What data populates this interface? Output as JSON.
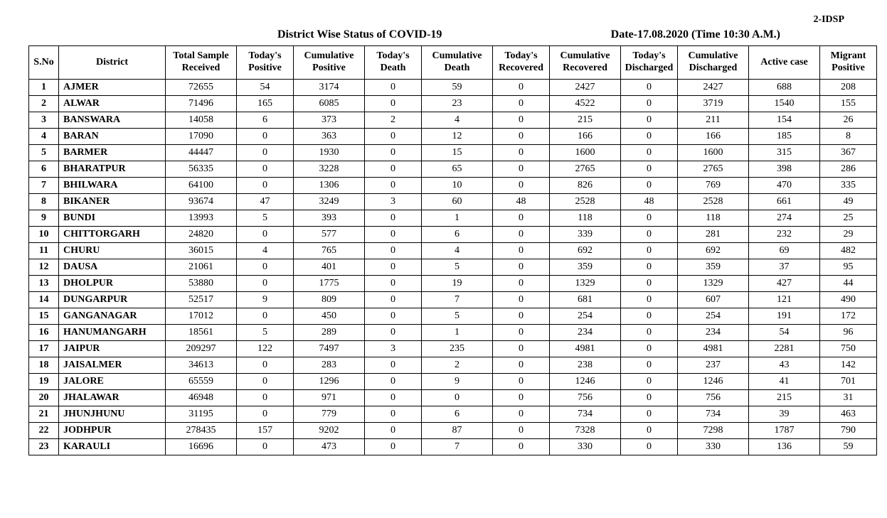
{
  "page_tag": "2-IDSP",
  "title": "District Wise Status of  COVID-19",
  "date_label": "Date-17.08.2020 (Time 10:30 A.M.)",
  "columns": [
    "S.No",
    "District",
    "Total Sample Received",
    "Today's Positive",
    "Cumulative Positive",
    "Today's Death",
    "Cumulative Death",
    "Today's Recovered",
    "Cumulative Recovered",
    "Today's Discharged",
    "Cumulative Discharged",
    "Active  case",
    "Migrant Positive"
  ],
  "rows": [
    [
      "1",
      "AJMER",
      "72655",
      "54",
      "3174",
      "0",
      "59",
      "0",
      "2427",
      "0",
      "2427",
      "688",
      "208"
    ],
    [
      "2",
      "ALWAR",
      "71496",
      "165",
      "6085",
      "0",
      "23",
      "0",
      "4522",
      "0",
      "3719",
      "1540",
      "155"
    ],
    [
      "3",
      "BANSWARA",
      "14058",
      "6",
      "373",
      "2",
      "4",
      "0",
      "215",
      "0",
      "211",
      "154",
      "26"
    ],
    [
      "4",
      "BARAN",
      "17090",
      "0",
      "363",
      "0",
      "12",
      "0",
      "166",
      "0",
      "166",
      "185",
      "8"
    ],
    [
      "5",
      "BARMER",
      "44447",
      "0",
      "1930",
      "0",
      "15",
      "0",
      "1600",
      "0",
      "1600",
      "315",
      "367"
    ],
    [
      "6",
      "BHARATPUR",
      "56335",
      "0",
      "3228",
      "0",
      "65",
      "0",
      "2765",
      "0",
      "2765",
      "398",
      "286"
    ],
    [
      "7",
      "BHILWARA",
      "64100",
      "0",
      "1306",
      "0",
      "10",
      "0",
      "826",
      "0",
      "769",
      "470",
      "335"
    ],
    [
      "8",
      "BIKANER",
      "93674",
      "47",
      "3249",
      "3",
      "60",
      "48",
      "2528",
      "48",
      "2528",
      "661",
      "49"
    ],
    [
      "9",
      "BUNDI",
      "13993",
      "5",
      "393",
      "0",
      "1",
      "0",
      "118",
      "0",
      "118",
      "274",
      "25"
    ],
    [
      "10",
      "CHITTORGARH",
      "24820",
      "0",
      "577",
      "0",
      "6",
      "0",
      "339",
      "0",
      "281",
      "232",
      "29"
    ],
    [
      "11",
      "CHURU",
      "36015",
      "4",
      "765",
      "0",
      "4",
      "0",
      "692",
      "0",
      "692",
      "69",
      "482"
    ],
    [
      "12",
      "DAUSA",
      "21061",
      "0",
      "401",
      "0",
      "5",
      "0",
      "359",
      "0",
      "359",
      "37",
      "95"
    ],
    [
      "13",
      "DHOLPUR",
      "53880",
      "0",
      "1775",
      "0",
      "19",
      "0",
      "1329",
      "0",
      "1329",
      "427",
      "44"
    ],
    [
      "14",
      "DUNGARPUR",
      "52517",
      "9",
      "809",
      "0",
      "7",
      "0",
      "681",
      "0",
      "607",
      "121",
      "490"
    ],
    [
      "15",
      "GANGANAGAR",
      "17012",
      "0",
      "450",
      "0",
      "5",
      "0",
      "254",
      "0",
      "254",
      "191",
      "172"
    ],
    [
      "16",
      "HANUMANGARH",
      "18561",
      "5",
      "289",
      "0",
      "1",
      "0",
      "234",
      "0",
      "234",
      "54",
      "96"
    ],
    [
      "17",
      "JAIPUR",
      "209297",
      "122",
      "7497",
      "3",
      "235",
      "0",
      "4981",
      "0",
      "4981",
      "2281",
      "750"
    ],
    [
      "18",
      "JAISALMER",
      "34613",
      "0",
      "283",
      "0",
      "2",
      "0",
      "238",
      "0",
      "237",
      "43",
      "142"
    ],
    [
      "19",
      "JALORE",
      "65559",
      "0",
      "1296",
      "0",
      "9",
      "0",
      "1246",
      "0",
      "1246",
      "41",
      "701"
    ],
    [
      "20",
      "JHALAWAR",
      "46948",
      "0",
      "971",
      "0",
      "0",
      "0",
      "756",
      "0",
      "756",
      "215",
      "31"
    ],
    [
      "21",
      "JHUNJHUNU",
      "31195",
      "0",
      "779",
      "0",
      "6",
      "0",
      "734",
      "0",
      "734",
      "39",
      "463"
    ],
    [
      "22",
      "JODHPUR",
      "278435",
      "157",
      "9202",
      "0",
      "87",
      "0",
      "7328",
      "0",
      "7298",
      "1787",
      "790"
    ],
    [
      "23",
      "KARAULI",
      "16696",
      "0",
      "473",
      "0",
      "7",
      "0",
      "330",
      "0",
      "330",
      "136",
      "59"
    ]
  ],
  "style": {
    "font_family": "Times New Roman",
    "border_color": "#000000",
    "background_color": "#ffffff",
    "text_color": "#000000",
    "header_fontsize_pt": 16,
    "cell_fontsize_pt": 14
  }
}
